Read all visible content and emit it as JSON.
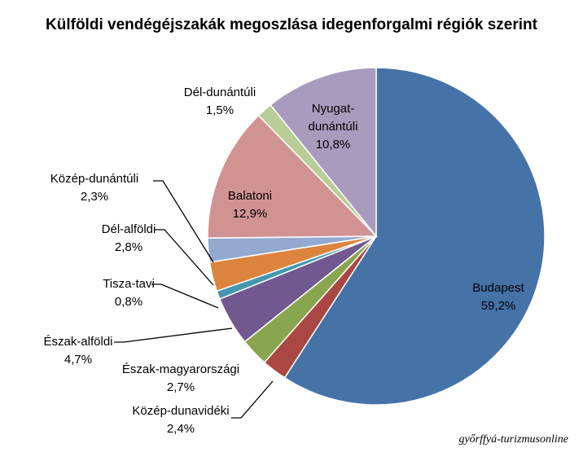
{
  "chart_data": {
    "type": "pie",
    "title": "Külföldi vendégéjszakák megoszlása idegenforgalmi régiók szerint",
    "start_angle_deg": 0,
    "direction": "clockwise",
    "legend": "none",
    "slices": [
      {
        "label": "Budapest",
        "value": 59.2,
        "value_label": "59,2%",
        "color": "#4572A7"
      },
      {
        "label": "Közép-dunavidéki",
        "value": 2.4,
        "value_label": "2,4%",
        "color": "#AA4643"
      },
      {
        "label": "Észak-magyarországi",
        "value": 2.7,
        "value_label": "2,7%",
        "color": "#89A54E"
      },
      {
        "label": "Észak-alföldi",
        "value": 4.7,
        "value_label": "4,7%",
        "color": "#71588F"
      },
      {
        "label": "Tisza-tavi",
        "value": 0.8,
        "value_label": "0,8%",
        "color": "#4198AF"
      },
      {
        "label": "Dél-alföldi",
        "value": 2.8,
        "value_label": "2,8%",
        "color": "#DB843D"
      },
      {
        "label": "Közép-dunántúli",
        "value": 2.3,
        "value_label": "2,3%",
        "color": "#93A9CF"
      },
      {
        "label": "Balatoni",
        "value": 12.9,
        "value_label": "12,9%",
        "color": "#D19392"
      },
      {
        "label": "Dél-dunántúli",
        "value": 1.5,
        "value_label": "1,5%",
        "color": "#B9CD96"
      },
      {
        "label": "Nyugat-dunántúli",
        "value": 10.8,
        "value_label": "10,8%",
        "color": "#A99BBD"
      }
    ]
  },
  "source_note": "győrffyá-turizmusonline"
}
